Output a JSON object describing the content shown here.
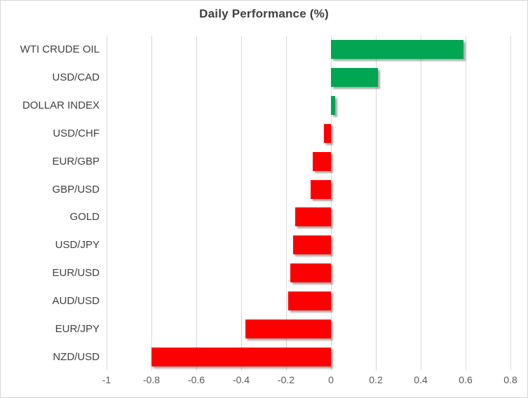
{
  "chart_data": {
    "type": "bar",
    "orientation": "horizontal",
    "title": "Daily Performance (%)",
    "categories": [
      "WTI CRUDE OIL",
      "USD/CAD",
      "DOLLAR INDEX",
      "USD/CHF",
      "EUR/GBP",
      "GBP/USD",
      "GOLD",
      "USD/JPY",
      "EUR/USD",
      "AUD/USD",
      "EUR/JPY",
      "NZD/USD"
    ],
    "values": [
      0.59,
      0.21,
      0.02,
      -0.03,
      -0.08,
      -0.09,
      -0.16,
      -0.17,
      -0.18,
      -0.19,
      -0.38,
      -0.8
    ],
    "xlim": [
      -1,
      0.8
    ],
    "xticks": [
      -1,
      -0.8,
      -0.6,
      -0.4,
      -0.2,
      0,
      0.2,
      0.4,
      0.6,
      0.8
    ],
    "xtick_labels": [
      "-1",
      "-0.8",
      "-0.6",
      "-0.4",
      "-0.2",
      "0",
      "0.2",
      "0.4",
      "0.6",
      "0.8"
    ],
    "grid": "vertical-only",
    "legend": "none",
    "colors": {
      "positive": "#00a651",
      "negative": "#ff0000",
      "gridline": "#d9d9d9",
      "title": "#3f3f3f",
      "category_label": "#404040",
      "tick_label": "#595959",
      "border": "#d9d9d9",
      "background": "#ffffff"
    }
  }
}
